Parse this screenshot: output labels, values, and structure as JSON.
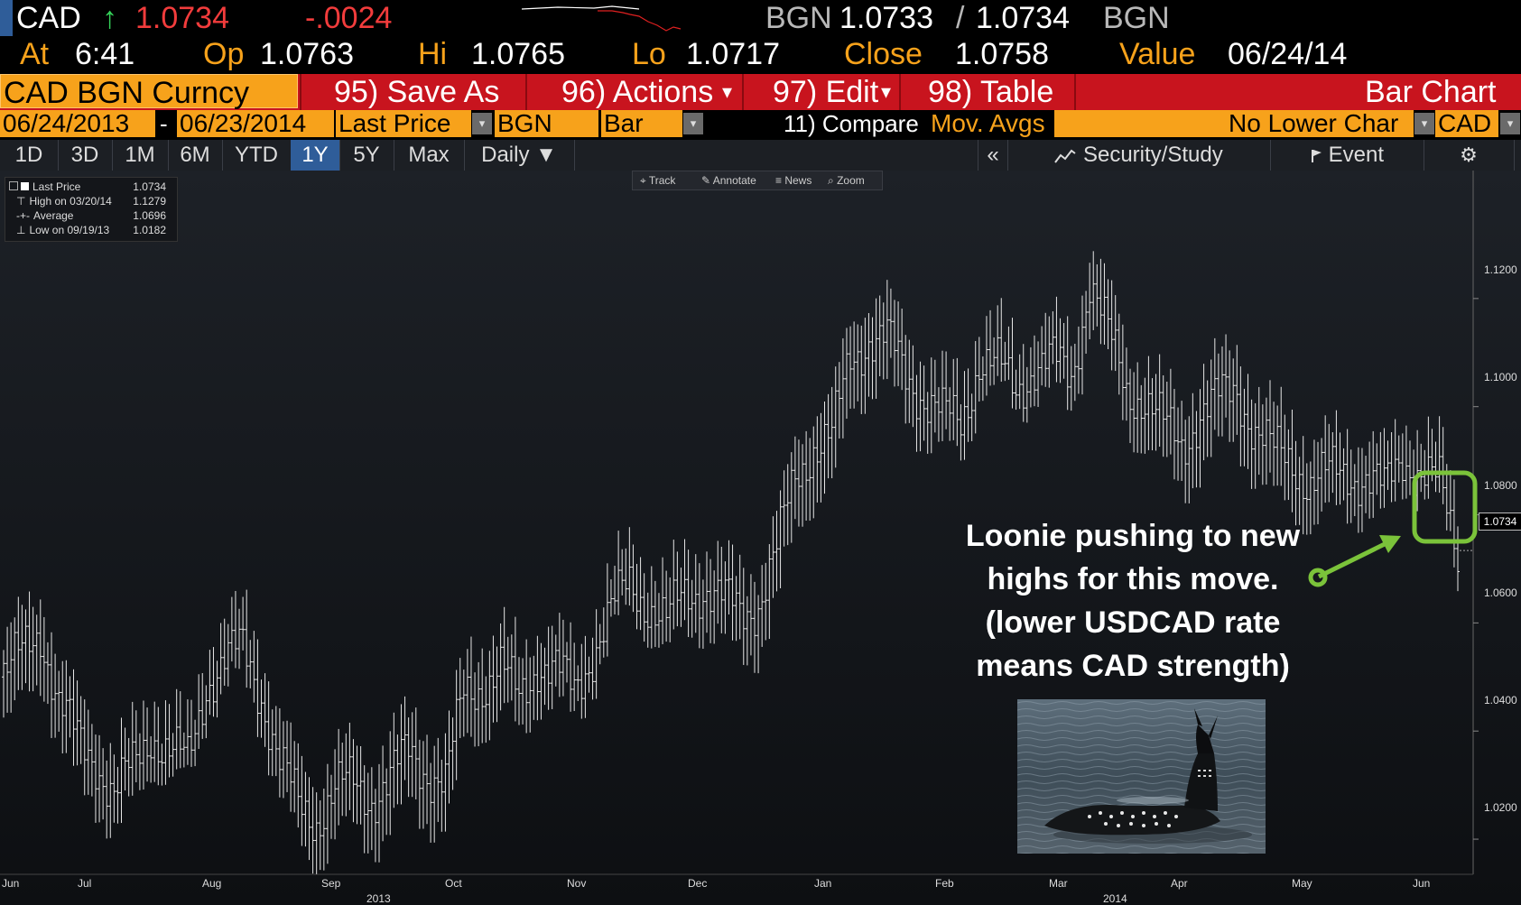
{
  "ticker": {
    "symbol": "CAD",
    "arrow": "↑",
    "last": "1.0734",
    "change": "-.0024",
    "bid_src": "BGN",
    "bid": "1.0733",
    "slash": "/",
    "ask": "1.0734",
    "ask_src": "BGN"
  },
  "quote": {
    "at_label": "At",
    "time": "6:41",
    "op_label": "Op",
    "op": "1.0763",
    "hi_label": "Hi",
    "hi": "1.0765",
    "lo_label": "Lo",
    "lo": "1.0717",
    "close_label": "Close",
    "close": "1.0758",
    "value_label": "Value",
    "value_date": "06/24/14"
  },
  "menu": {
    "security": "CAD BGN Curncy",
    "save_as": "95) Save As",
    "actions": "96) Actions",
    "edit": "97) Edit",
    "table": "98) Table",
    "title": "Bar Chart",
    "dropdown_marker": "▾"
  },
  "fields": {
    "start_date": "06/24/2013",
    "dash": "-",
    "end_date": "06/23/2014",
    "price_type": "Last Price",
    "source": "BGN",
    "chart_style": "Bar",
    "compare_label": "11) Compare",
    "mov_avgs": "Mov. Avgs",
    "lower_chart": "No Lower Char",
    "currency": "CAD",
    "arrow": "▾"
  },
  "tabs": [
    "1D",
    "3D",
    "1M",
    "6M",
    "YTD",
    "1Y",
    "5Y",
    "Max",
    "Daily ▼"
  ],
  "active_tab": "1Y",
  "tabbar_right": {
    "collapse": "«",
    "security_study": "Security/Study",
    "event": "Event",
    "settings": "⚙"
  },
  "legend": [
    {
      "label": "Last Price",
      "value": "1.0734"
    },
    {
      "label": "High on 03/20/14",
      "value": "1.1279"
    },
    {
      "label": "Average",
      "value": "1.0696"
    },
    {
      "label": "Low on 09/19/13",
      "value": "1.0182"
    }
  ],
  "toolbar": {
    "track": "Track",
    "annotate": "Annotate",
    "news": "News",
    "zoom": "Zoom"
  },
  "annotation": {
    "line1": "Loonie pushing to new",
    "line2": "highs for this move.",
    "line3": "(lower USDCAD rate",
    "line4": "means CAD strength)"
  },
  "colors": {
    "accent_orange": "#f7a21b",
    "menu_red": "#c8141e",
    "down_red": "#f23c3c",
    "up_green": "#35d25a",
    "callout_green": "#7bc33a",
    "active_tab_blue": "#2f5d99"
  },
  "chart_data": {
    "type": "bar",
    "style": "OHLC",
    "title": "",
    "ylim": [
      1.0135,
      1.1395
    ],
    "yticks": [
      "1.1200",
      "1.1000",
      "1.0800",
      "1.0600",
      "1.0400",
      "1.0200"
    ],
    "ytick_values": [
      1.12,
      1.1,
      1.08,
      1.06,
      1.04,
      1.02
    ],
    "last_price_label": "1.0734",
    "last_price": 1.0734,
    "xticks": [
      "Jun",
      "Jul",
      "Aug",
      "Sep",
      "Oct",
      "Nov",
      "Dec",
      "Jan",
      "Feb",
      "Mar",
      "Apr",
      "May",
      "Jun"
    ],
    "year_labels": [
      "2013",
      "2014"
    ],
    "weekly_close": [
      1.05,
      1.054,
      1.059,
      1.045,
      1.038,
      1.035,
      1.028,
      1.033,
      1.04,
      1.036,
      1.034,
      1.049,
      1.053,
      1.055,
      1.047,
      1.034,
      1.026,
      1.024,
      1.029,
      1.03,
      1.028,
      1.031,
      1.036,
      1.033,
      1.03,
      1.047,
      1.049,
      1.051,
      1.046,
      1.053,
      1.051,
      1.047,
      1.055,
      1.062,
      1.067,
      1.064,
      1.06,
      1.065,
      1.067,
      1.064,
      1.062,
      1.064,
      1.073,
      1.087,
      1.093,
      1.094,
      1.109,
      1.113,
      1.112,
      1.106,
      1.102,
      1.098,
      1.097,
      1.109,
      1.107,
      1.103,
      1.108,
      1.108,
      1.105,
      1.124,
      1.113,
      1.103,
      1.102,
      1.096,
      1.093,
      1.099,
      1.101,
      1.103,
      1.096,
      1.091,
      1.09,
      1.086,
      1.087,
      1.088,
      1.087,
      1.084,
      1.091,
      1.088,
      1.085,
      1.0734
    ]
  }
}
